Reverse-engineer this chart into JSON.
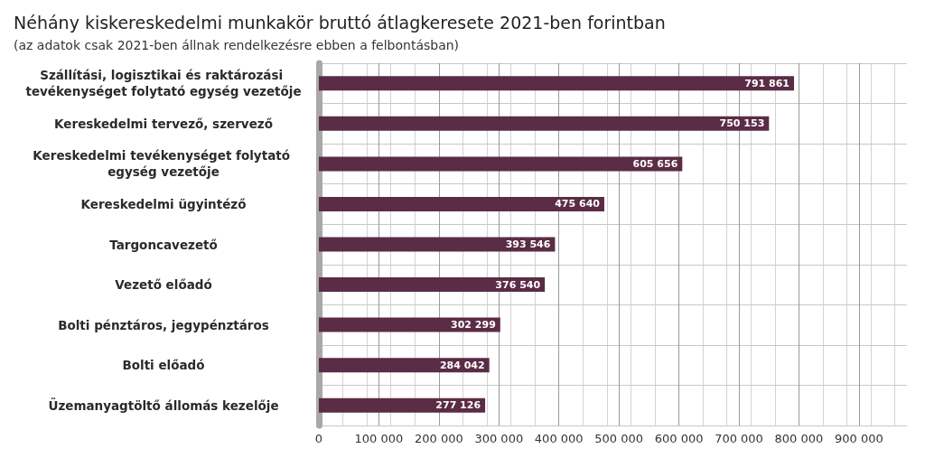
{
  "chart_data": {
    "type": "bar",
    "orientation": "horizontal",
    "title": "Néhány kiskereskedelmi munkakör bruttó átlagkeresete 2021-ben forintban",
    "subtitle": "(az adatok csak 2021-ben állnak rendelkezésre ebben a felbontásban)",
    "categories": [
      "Szállítási, logisztikai és raktározási tevékenységet folytató egység vezetője",
      "Kereskedelmi tervező, szervező",
      "Kereskedelmi tevékenységet folytató egység vezetője",
      "Kereskedelmi ügyintéző",
      "Targoncavezető",
      "Vezető előadó",
      "Bolti pénztáros, jegypénztáros",
      "Bolti előadó",
      "Üzemanyagtöltő állomás kezelője"
    ],
    "values": [
      791861,
      750153,
      605656,
      475640,
      393546,
      376540,
      302299,
      284042,
      277126
    ],
    "value_labels": [
      "791 861",
      "750 153",
      "605 656",
      "475 640",
      "393 546",
      "376 540",
      "302 299",
      "284 042",
      "277 126"
    ],
    "color": "#5b2c45",
    "xlim": [
      0,
      980000
    ],
    "xticks": [
      0,
      {
        "value": 100000,
        "label": "100 000"
      },
      {
        "value": 200000,
        "label": "200 000"
      },
      {
        "value": 300000,
        "label": "300 000"
      },
      {
        "value": 400000,
        "label": "400 000"
      },
      {
        "value": 500000,
        "label": "500 000"
      },
      {
        "value": 600000,
        "label": "600 000"
      },
      {
        "value": 700000,
        "label": "700 000"
      },
      {
        "value": 800000,
        "label": "800 000"
      },
      {
        "value": 900000,
        "label": "900 000"
      }
    ],
    "grid": true
  }
}
